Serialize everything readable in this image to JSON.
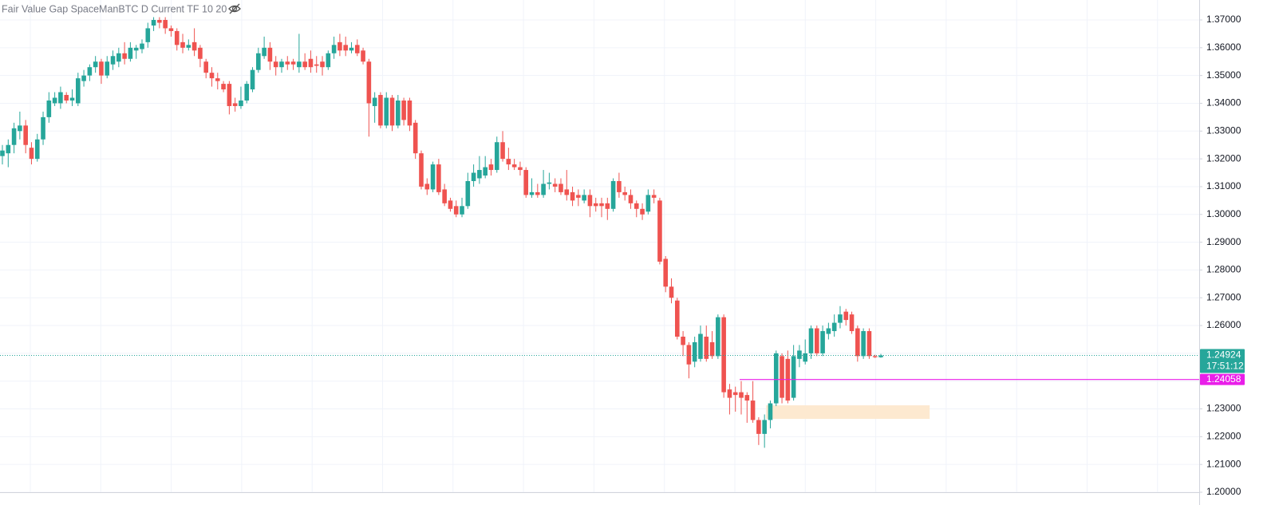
{
  "chart_data": {
    "type": "candlestick",
    "title": "Fair Value Gap SpaceManBTC D Current TF 10 20",
    "up_color": "#26a69a",
    "down_color": "#ef5350",
    "ylim": [
      1.2,
      1.37718
    ],
    "yticks": [
      {
        "value": 1.37,
        "label": "1.37000"
      },
      {
        "value": 1.36,
        "label": "1.36000"
      },
      {
        "value": 1.35,
        "label": "1.35000"
      },
      {
        "value": 1.34,
        "label": "1.34000"
      },
      {
        "value": 1.33,
        "label": "1.33000"
      },
      {
        "value": 1.32,
        "label": "1.32000"
      },
      {
        "value": 1.31,
        "label": "1.31000"
      },
      {
        "value": 1.3,
        "label": "1.30000"
      },
      {
        "value": 1.29,
        "label": "1.29000"
      },
      {
        "value": 1.28,
        "label": "1.28000"
      },
      {
        "value": 1.27,
        "label": "1.27000"
      },
      {
        "value": 1.26,
        "label": "1.26000"
      },
      {
        "value": 1.25,
        "label": "1.25000"
      },
      {
        "value": 1.24,
        "label": "1.24000"
      },
      {
        "value": 1.23,
        "label": "1.23000"
      },
      {
        "value": 1.22,
        "label": "1.22000"
      },
      {
        "value": 1.21,
        "label": "1.21000"
      },
      {
        "value": 1.2,
        "label": "1.20000"
      }
    ],
    "grid": true,
    "open": [
      1.321,
      1.322,
      1.325,
      1.33,
      1.332,
      1.324,
      1.32,
      1.327,
      1.335,
      1.34,
      1.34,
      1.343,
      1.341,
      1.34,
      1.348,
      1.35,
      1.353,
      1.355,
      1.35,
      1.354,
      1.355,
      1.358,
      1.356,
      1.359,
      1.3595,
      1.362,
      1.368,
      1.37,
      1.37,
      1.367,
      1.366,
      1.362,
      1.36,
      1.362,
      1.36,
      1.355,
      1.351,
      1.349,
      1.347,
      1.347,
      1.34,
      1.339,
      1.341,
      1.345,
      1.352,
      1.357,
      1.36,
      1.355,
      1.353,
      1.355,
      1.355,
      1.353,
      1.355,
      1.356,
      1.354,
      1.355,
      1.353,
      1.358,
      1.362,
      1.361,
      1.359,
      1.361,
      1.359,
      1.355,
      1.339,
      1.343,
      1.332,
      1.342,
      1.332,
      1.341,
      1.341,
      1.333,
      1.322,
      1.311,
      1.309,
      1.318,
      1.309,
      1.305,
      1.303,
      1.3,
      1.303,
      1.312,
      1.313,
      1.314,
      1.318,
      1.316,
      1.326,
      1.32,
      1.318,
      1.317,
      1.316,
      1.307,
      1.308,
      1.307,
      1.311,
      1.311,
      1.311,
      1.309,
      1.308,
      1.307,
      1.305,
      1.307,
      1.304,
      1.304,
      1.304,
      1.302,
      1.312,
      1.308,
      1.307,
      1.304,
      1.302,
      1.301,
      1.307,
      1.305,
      1.284,
      1.274,
      1.269,
      1.256,
      1.253,
      1.247,
      1.248,
      1.256,
      1.254,
      1.249,
      1.263,
      1.237,
      1.236,
      1.236,
      1.235,
      1.233,
      1.226,
      1.221,
      1.226,
      1.232,
      1.249,
      1.248,
      1.234,
      1.248,
      1.247,
      1.25,
      1.259,
      1.25,
      1.257,
      1.258,
      1.261,
      1.265,
      1.264,
      1.259,
      1.249,
      1.258,
      1.249,
      1.2486
    ],
    "high": [
      1.325,
      1.327,
      1.333,
      1.337,
      1.334,
      1.326,
      1.329,
      1.337,
      1.344,
      1.344,
      1.346,
      1.344,
      1.345,
      1.351,
      1.352,
      1.354,
      1.357,
      1.356,
      1.357,
      1.359,
      1.36,
      1.362,
      1.362,
      1.361,
      1.363,
      1.369,
      1.371,
      1.371,
      1.371,
      1.368,
      1.367,
      1.365,
      1.363,
      1.367,
      1.361,
      1.356,
      1.353,
      1.351,
      1.348,
      1.348,
      1.342,
      1.346,
      1.348,
      1.353,
      1.36,
      1.364,
      1.362,
      1.357,
      1.356,
      1.357,
      1.356,
      1.365,
      1.358,
      1.359,
      1.357,
      1.357,
      1.359,
      1.364,
      1.365,
      1.364,
      1.362,
      1.363,
      1.36,
      1.356,
      1.344,
      1.344,
      1.344,
      1.343,
      1.343,
      1.342,
      1.342,
      1.334,
      1.323,
      1.313,
      1.319,
      1.32,
      1.311,
      1.306,
      1.305,
      1.306,
      1.315,
      1.318,
      1.321,
      1.321,
      1.32,
      1.328,
      1.33,
      1.324,
      1.32,
      1.319,
      1.317,
      1.313,
      1.311,
      1.316,
      1.315,
      1.313,
      1.313,
      1.316,
      1.31,
      1.309,
      1.309,
      1.309,
      1.306,
      1.306,
      1.306,
      1.313,
      1.315,
      1.31,
      1.309,
      1.305,
      1.304,
      1.309,
      1.309,
      1.306,
      1.285,
      1.277,
      1.27,
      1.258,
      1.254,
      1.256,
      1.26,
      1.26,
      1.258,
      1.264,
      1.264,
      1.239,
      1.238,
      1.24,
      1.236,
      1.24,
      1.227,
      1.228,
      1.233,
      1.251,
      1.25,
      1.251,
      1.253,
      1.253,
      1.255,
      1.26,
      1.26,
      1.26,
      1.261,
      1.264,
      1.267,
      1.266,
      1.265,
      1.26,
      1.259,
      1.259,
      1.2495,
      1.2498
    ],
    "low": [
      1.318,
      1.317,
      1.322,
      1.327,
      1.322,
      1.318,
      1.319,
      1.325,
      1.333,
      1.339,
      1.338,
      1.34,
      1.339,
      1.339,
      1.346,
      1.348,
      1.351,
      1.347,
      1.349,
      1.352,
      1.353,
      1.354,
      1.355,
      1.356,
      1.358,
      1.36,
      1.366,
      1.367,
      1.365,
      1.364,
      1.359,
      1.358,
      1.359,
      1.357,
      1.353,
      1.349,
      1.346,
      1.345,
      1.344,
      1.336,
      1.337,
      1.338,
      1.34,
      1.344,
      1.351,
      1.356,
      1.352,
      1.35,
      1.351,
      1.352,
      1.352,
      1.351,
      1.352,
      1.351,
      1.351,
      1.35,
      1.352,
      1.356,
      1.357,
      1.357,
      1.358,
      1.357,
      1.354,
      1.328,
      1.333,
      1.331,
      1.331,
      1.33,
      1.331,
      1.332,
      1.33,
      1.32,
      1.309,
      1.307,
      1.308,
      1.307,
      1.303,
      1.301,
      1.299,
      1.299,
      1.302,
      1.31,
      1.311,
      1.313,
      1.314,
      1.315,
      1.319,
      1.316,
      1.316,
      1.314,
      1.306,
      1.306,
      1.306,
      1.306,
      1.309,
      1.308,
      1.307,
      1.305,
      1.303,
      1.303,
      1.304,
      1.299,
      1.301,
      1.299,
      1.298,
      1.301,
      1.306,
      1.305,
      1.302,
      1.299,
      1.298,
      1.3,
      1.304,
      1.282,
      1.272,
      1.268,
      1.255,
      1.249,
      1.241,
      1.245,
      1.247,
      1.247,
      1.248,
      1.248,
      1.234,
      1.228,
      1.229,
      1.228,
      1.225,
      1.225,
      1.217,
      1.216,
      1.223,
      1.231,
      1.232,
      1.232,
      1.233,
      1.245,
      1.246,
      1.248,
      1.249,
      1.249,
      1.255,
      1.256,
      1.259,
      1.26,
      1.257,
      1.247,
      1.248,
      1.248,
      1.2483,
      1.2484
    ],
    "close": [
      1.323,
      1.325,
      1.331,
      1.332,
      1.325,
      1.32,
      1.327,
      1.335,
      1.341,
      1.342,
      1.344,
      1.341,
      1.342,
      1.349,
      1.35,
      1.353,
      1.355,
      1.35,
      1.355,
      1.357,
      1.358,
      1.356,
      1.36,
      1.36,
      1.3615,
      1.367,
      1.37,
      1.369,
      1.367,
      1.366,
      1.361,
      1.36,
      1.361,
      1.359,
      1.356,
      1.351,
      1.349,
      1.348,
      1.345,
      1.339,
      1.339,
      1.341,
      1.347,
      1.352,
      1.358,
      1.36,
      1.355,
      1.353,
      1.355,
      1.354,
      1.354,
      1.355,
      1.353,
      1.353,
      1.3535,
      1.353,
      1.358,
      1.361,
      1.359,
      1.359,
      1.36,
      1.358,
      1.355,
      1.34,
      1.342,
      1.332,
      1.342,
      1.332,
      1.341,
      1.334,
      1.332,
      1.322,
      1.31,
      1.309,
      1.318,
      1.308,
      1.304,
      1.302,
      1.3,
      1.303,
      1.312,
      1.315,
      1.316,
      1.317,
      1.316,
      1.326,
      1.32,
      1.318,
      1.317,
      1.316,
      1.307,
      1.308,
      1.307,
      1.311,
      1.3115,
      1.31,
      1.308,
      1.307,
      1.305,
      1.306,
      1.307,
      1.303,
      1.303,
      1.303,
      1.302,
      1.312,
      1.308,
      1.307,
      1.304,
      1.302,
      1.3,
      1.307,
      1.306,
      1.283,
      1.274,
      1.27,
      1.256,
      1.253,
      1.246,
      1.254,
      1.257,
      1.248,
      1.249,
      1.263,
      1.236,
      1.234,
      1.235,
      1.234,
      1.233,
      1.226,
      1.221,
      1.226,
      1.232,
      1.25,
      1.234,
      1.233,
      1.249,
      1.251,
      1.25,
      1.259,
      1.25,
      1.258,
      1.259,
      1.261,
      1.264,
      1.262,
      1.258,
      1.249,
      1.258,
      1.249,
      1.2486,
      1.24924
    ],
    "countdown": "17:51:12",
    "level": {
      "value": 1.24058,
      "color": "#e91ee9"
    },
    "fvg": {
      "top": 1.23129,
      "bottom": 1.2264,
      "color": "#fde9d0"
    }
  }
}
